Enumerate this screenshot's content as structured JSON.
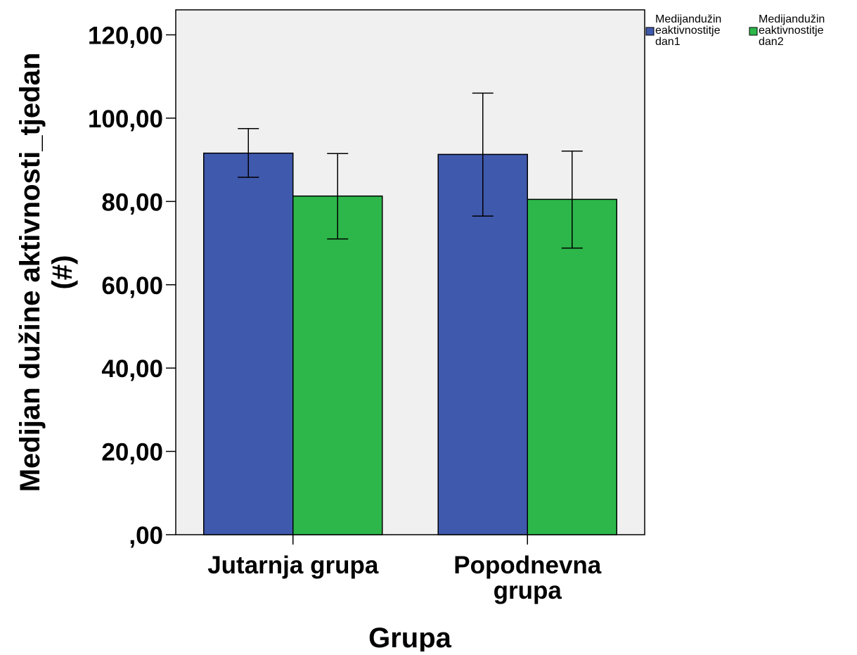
{
  "chart_data": {
    "type": "bar",
    "xlabel": "Grupa",
    "ylabel_lines": [
      "Medijan dužine aktivnosti_tjedan",
      "(#)"
    ],
    "categories": [
      {
        "label_lines": [
          "Jutarnja grupa"
        ]
      },
      {
        "label_lines": [
          "Popodnevna",
          "grupa"
        ]
      }
    ],
    "ylim": [
      0,
      126
    ],
    "y_ticks": [
      {
        "value": 0,
        "label": ",00"
      },
      {
        "value": 20,
        "label": "20,00"
      },
      {
        "value": 40,
        "label": "40,00"
      },
      {
        "value": 60,
        "label": "60,00"
      },
      {
        "value": 80,
        "label": "80,00"
      },
      {
        "value": 100,
        "label": "100,00"
      },
      {
        "value": 120,
        "label": "120,00"
      }
    ],
    "series": [
      {
        "name_lines": [
          "Medijandužin",
          "eaktivnostitje",
          "dan1"
        ],
        "color": "#3f59ad",
        "values": [
          91.6,
          91.3
        ],
        "error_low": [
          85.8,
          76.5
        ],
        "error_high": [
          97.5,
          106.0
        ]
      },
      {
        "name_lines": [
          "Medijandužin",
          "eaktivnostitje",
          "dan2"
        ],
        "color": "#2db74a",
        "values": [
          81.3,
          80.5
        ],
        "error_low": [
          71.0,
          68.8
        ],
        "error_high": [
          91.5,
          92.1
        ]
      }
    ],
    "legend_position": "top-right",
    "plot_background": "#f0f0f0",
    "grid": false
  }
}
